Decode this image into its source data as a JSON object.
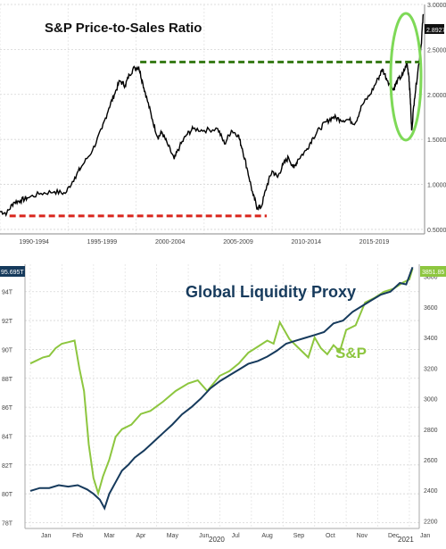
{
  "chart_data": [
    {
      "type": "line",
      "title": "S&P Price-to-Sales Ratio",
      "x_tick_labels": [
        "1990-1994",
        "1995-1999",
        "2000-2004",
        "2005-2009",
        "2010-2014",
        "2015-2019"
      ],
      "x_range": [
        1990,
        2021.2
      ],
      "y_ticks": [
        "3.0000",
        "2.5000",
        "2.0000",
        "1.5000",
        "1.0000",
        "0.5000"
      ],
      "y_range": [
        0.45,
        3.0
      ],
      "last_value_label": "2.8927",
      "series": [
        {
          "x": [
            1990.0,
            1990.5,
            1991.0,
            1991.5,
            1992.0,
            1993.0,
            1994.0,
            1994.8,
            1995.5,
            1996.0,
            1996.8,
            1997.5,
            1998.0,
            1998.4,
            1998.8,
            1999.2,
            1999.5,
            1999.9,
            2000.2,
            2000.5,
            2000.8,
            2001.2,
            2001.6,
            2001.9,
            2002.3,
            2002.8,
            2003.2,
            2003.7,
            2004.2,
            2005.0,
            2006.0,
            2006.5,
            2007.0,
            2007.5,
            2007.8,
            2008.2,
            2008.6,
            2008.9,
            2009.2,
            2009.6,
            2010.0,
            2010.4,
            2010.8,
            2011.2,
            2011.6,
            2011.9,
            2012.5,
            2013.0,
            2013.5,
            2014.0,
            2014.5,
            2015.0,
            2015.6,
            2016.1,
            2016.6,
            2017.2,
            2017.8,
            2018.1,
            2018.5,
            2018.9,
            2019.2,
            2019.6,
            2019.9,
            2020.05,
            2020.15,
            2020.25,
            2020.45,
            2020.7,
            2020.95,
            2021.1
          ],
          "y": [
            0.7,
            0.68,
            0.8,
            0.82,
            0.85,
            0.9,
            0.92,
            0.9,
            1.08,
            1.2,
            1.38,
            1.62,
            1.85,
            2.0,
            2.15,
            2.1,
            2.22,
            2.3,
            2.3,
            2.12,
            1.95,
            1.72,
            1.52,
            1.58,
            1.45,
            1.28,
            1.42,
            1.55,
            1.62,
            1.6,
            1.62,
            1.45,
            1.6,
            1.55,
            1.4,
            1.15,
            0.88,
            0.74,
            0.75,
            0.98,
            1.15,
            1.08,
            1.22,
            1.3,
            1.18,
            1.28,
            1.38,
            1.52,
            1.62,
            1.7,
            1.75,
            1.72,
            1.72,
            1.68,
            1.88,
            2.0,
            2.18,
            2.28,
            2.15,
            2.05,
            2.15,
            2.22,
            2.35,
            2.2,
            1.95,
            1.6,
            1.95,
            2.25,
            2.55,
            2.8927
          ]
        }
      ],
      "annotations": {
        "peak_reference_value": 2.36,
        "low_reference_value": 0.65
      }
    },
    {
      "type": "line",
      "x_tick_labels": [
        "Jan",
        "Feb",
        "Mar",
        "Apr",
        "May",
        "Jun",
        "Jul",
        "Aug",
        "Sep",
        "Oct",
        "Nov",
        "Dec",
        "Jan"
      ],
      "year_labels": [
        "2020",
        "2021"
      ],
      "left_axis": {
        "ticks": [
          "94T",
          "92T",
          "90T",
          "88T",
          "86T",
          "84T",
          "82T",
          "80T",
          "78T"
        ],
        "tick_values": [
          94,
          92,
          90,
          88,
          86,
          84,
          82,
          80,
          78
        ],
        "range": [
          77.6,
          95.9
        ],
        "last_value_label": "95.695T"
      },
      "right_axis": {
        "ticks": [
          "3800",
          "3600",
          "3400",
          "3200",
          "3000",
          "2800",
          "2600",
          "2400",
          "2200"
        ],
        "tick_values": [
          3800,
          3600,
          3400,
          3200,
          3000,
          2800,
          2600,
          2400,
          2200
        ],
        "range": [
          2150,
          3880
        ],
        "last_value_label": "3851.85"
      },
      "series": [
        {
          "name": "S&P",
          "color": "#8dc63f",
          "axis": "right",
          "x": [
            0.0,
            0.2,
            0.4,
            0.6,
            0.8,
            1.0,
            1.2,
            1.4,
            1.55,
            1.7,
            1.85,
            2.0,
            2.15,
            2.3,
            2.5,
            2.7,
            2.9,
            3.2,
            3.5,
            3.8,
            4.2,
            4.6,
            5.0,
            5.3,
            5.6,
            6.0,
            6.3,
            6.6,
            6.9,
            7.2,
            7.5,
            7.7,
            7.9,
            8.2,
            8.5,
            8.8,
            9.0,
            9.2,
            9.4,
            9.6,
            9.8,
            10.0,
            10.3,
            10.6,
            10.9,
            11.2,
            11.5,
            11.8,
            12.0,
            12.1
          ],
          "y": [
            3230,
            3250,
            3270,
            3280,
            3330,
            3360,
            3370,
            3380,
            3200,
            3050,
            2700,
            2480,
            2380,
            2490,
            2600,
            2750,
            2800,
            2830,
            2900,
            2920,
            2980,
            3050,
            3100,
            3120,
            3050,
            3150,
            3180,
            3230,
            3300,
            3340,
            3380,
            3360,
            3500,
            3390,
            3330,
            3270,
            3400,
            3330,
            3290,
            3350,
            3310,
            3450,
            3480,
            3630,
            3660,
            3700,
            3720,
            3760,
            3780,
            3851.85
          ]
        },
        {
          "name": "Global Liquidity Proxy",
          "color": "#163a5c",
          "axis": "left",
          "x": [
            0.0,
            0.3,
            0.6,
            0.9,
            1.2,
            1.5,
            1.8,
            2.0,
            2.2,
            2.35,
            2.5,
            2.7,
            2.9,
            3.1,
            3.3,
            3.6,
            3.9,
            4.2,
            4.5,
            4.8,
            5.1,
            5.4,
            5.7,
            6.0,
            6.3,
            6.6,
            6.9,
            7.2,
            7.5,
            7.8,
            8.1,
            8.4,
            8.7,
            9.0,
            9.3,
            9.6,
            9.9,
            10.2,
            10.5,
            10.8,
            11.1,
            11.4,
            11.7,
            11.9,
            12.1
          ],
          "y": [
            80.2,
            80.4,
            80.4,
            80.6,
            80.5,
            80.6,
            80.3,
            80.0,
            79.6,
            79.0,
            80.0,
            80.8,
            81.6,
            82.0,
            82.5,
            83.0,
            83.6,
            84.2,
            84.8,
            85.5,
            86.0,
            86.6,
            87.3,
            87.8,
            88.2,
            88.6,
            89.0,
            89.2,
            89.5,
            89.9,
            90.4,
            90.6,
            90.8,
            91.0,
            91.2,
            91.8,
            92.0,
            92.6,
            93.0,
            93.4,
            93.8,
            94.0,
            94.6,
            94.5,
            95.695
          ]
        }
      ]
    }
  ],
  "colors": {
    "price_to_sales_line": "#000000",
    "peak_dashed": "#3a7d1a",
    "low_dashed": "#d9261c",
    "highlight_ellipse": "#7ed957",
    "sp_line": "#8dc63f",
    "liquidity_line": "#163a5c"
  }
}
